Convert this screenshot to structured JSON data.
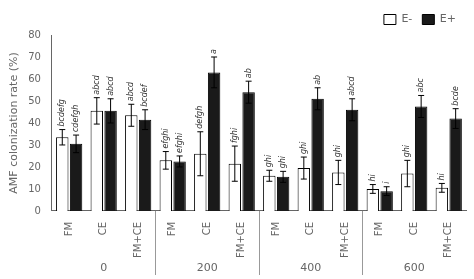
{
  "chart_data": {
    "type": "bar",
    "groups": [
      "0",
      "200",
      "400",
      "600"
    ],
    "subgroups": [
      "FM",
      "CE",
      "FM+CE"
    ],
    "series": [
      {
        "name": "E-",
        "color": "#ffffff",
        "values": [
          [
            33.5,
            45.5,
            43.5
          ],
          [
            23.0,
            26.0,
            21.5
          ],
          [
            16.0,
            19.5,
            17.5
          ],
          [
            10.0,
            17.0,
            10.5
          ]
        ],
        "errors": [
          [
            3.5,
            6.0,
            5.0
          ],
          [
            4.0,
            10.0,
            8.0
          ],
          [
            2.5,
            5.0,
            5.5
          ],
          [
            2.0,
            6.0,
            2.0
          ]
        ],
        "annotations": [
          [
            "bcdefg",
            "abcd",
            "abcd"
          ],
          [
            "efghi",
            "defgh",
            "fghi"
          ],
          [
            "ghi",
            "ghi",
            "ghi"
          ],
          [
            "hi",
            "ghi",
            "hi"
          ]
        ]
      },
      {
        "name": "E+",
        "color": "#1a1a1a",
        "values": [
          [
            30.5,
            45.5,
            41.5
          ],
          [
            22.5,
            63.0,
            54.0
          ],
          [
            15.5,
            51.0,
            46.0
          ],
          [
            9.0,
            47.5,
            42.0
          ]
        ],
        "errors": [
          [
            4.0,
            5.5,
            4.5
          ],
          [
            2.5,
            7.0,
            5.0
          ],
          [
            2.5,
            5.0,
            5.0
          ],
          [
            2.0,
            5.0,
            4.5
          ]
        ],
        "annotations": [
          [
            "cdefgh",
            "abcd",
            "bcdef"
          ],
          [
            "efghi",
            "a",
            "ab"
          ],
          [
            "ghi",
            "ab",
            "abcd"
          ],
          [
            "i",
            "abc",
            "bcde"
          ]
        ]
      }
    ],
    "ylabel": "AMF colonization rate (%)",
    "ylim": [
      0,
      80
    ],
    "yticks": [
      0,
      10,
      20,
      30,
      40,
      50,
      60,
      70,
      80
    ],
    "legend": "upper right",
    "grid": false
  }
}
